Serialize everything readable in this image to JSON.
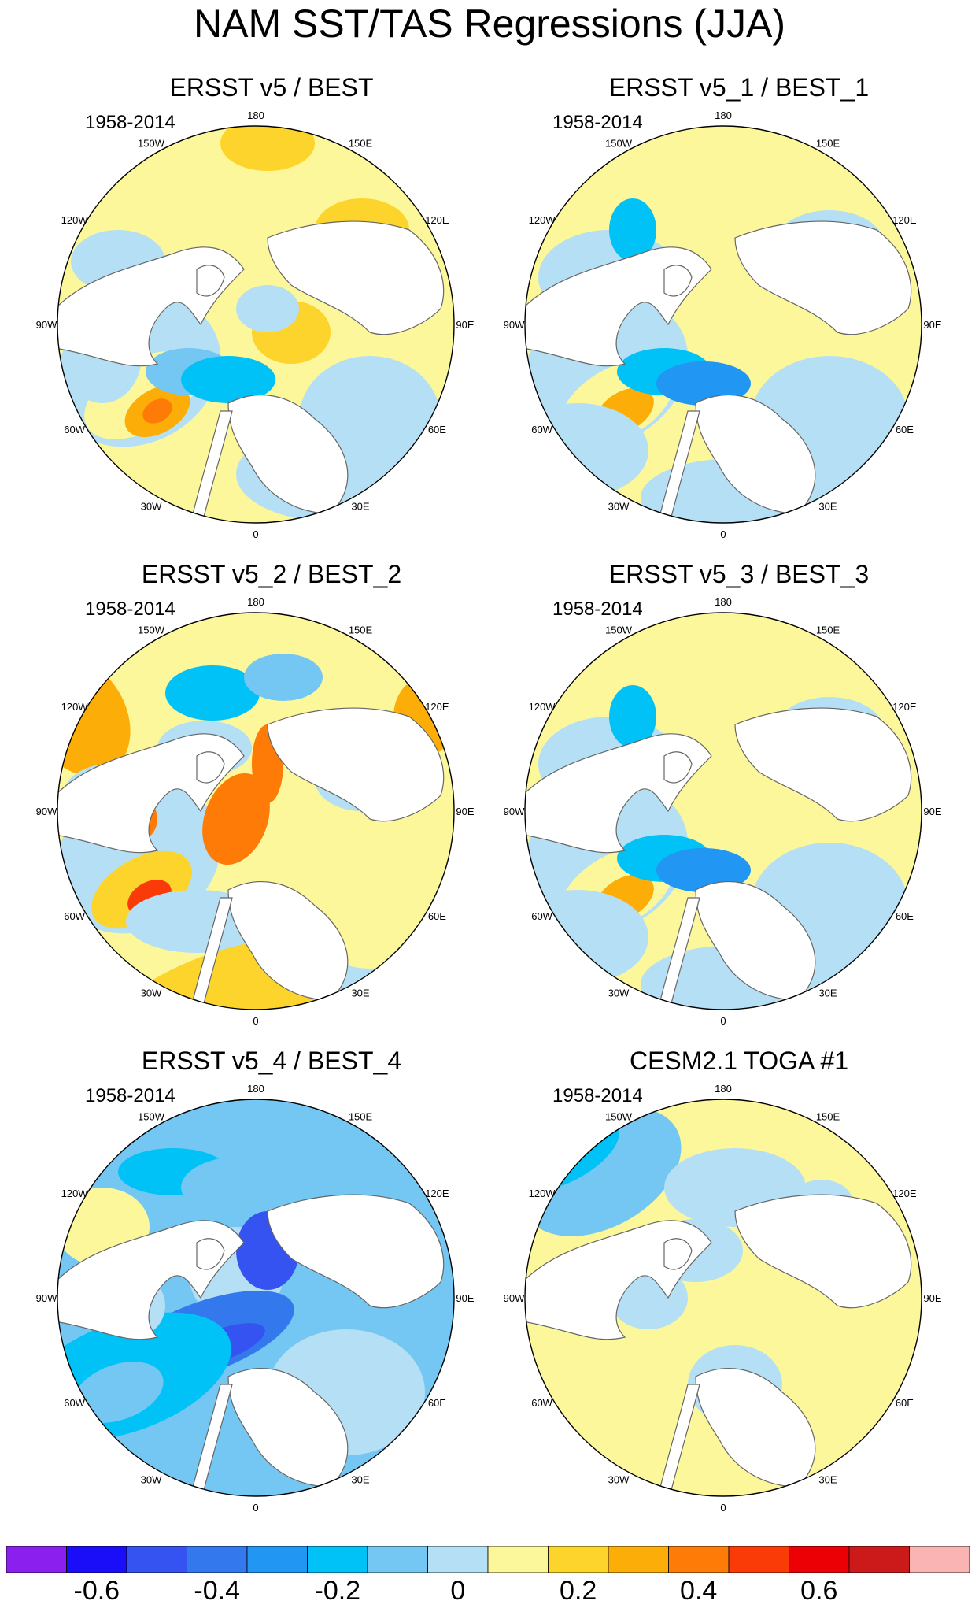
{
  "title": "NAM SST/TAS Regressions (JJA)",
  "panels": [
    {
      "title": "ERSST v5 / BEST",
      "period": "1958-2014",
      "scheme": "a"
    },
    {
      "title": "ERSST v5_1 / BEST_1",
      "period": "1958-2014",
      "scheme": "b"
    },
    {
      "title": "ERSST v5_2 / BEST_2",
      "period": "1958-2014",
      "scheme": "c"
    },
    {
      "title": "ERSST v5_3 / BEST_3",
      "period": "1958-2014",
      "scheme": "b"
    },
    {
      "title": "ERSST v5_4 / BEST_4",
      "period": "1958-2014",
      "scheme": "d"
    },
    {
      "title": "CESM2.1 TOGA #1",
      "period": "1958-2014",
      "scheme": "e"
    }
  ],
  "longitude_labels": [
    "180",
    "150E",
    "120E",
    "90E",
    "60E",
    "30E",
    "0",
    "30W",
    "60W",
    "90W",
    "120W",
    "150W"
  ],
  "colorbar": {
    "colors": [
      "#8a1fee",
      "#1a0df7",
      "#3453f0",
      "#3379ed",
      "#2196f3",
      "#00c2f7",
      "#73c7f2",
      "#b4dff4",
      "#fdf79b",
      "#fdd42c",
      "#fdad08",
      "#fd7b06",
      "#fb3b07",
      "#ed0005",
      "#cc1919",
      "#fbb4b4"
    ],
    "labels": [
      "-0.6",
      "-0.4",
      "-0.2",
      "0",
      "0.2",
      "0.4",
      "0.6"
    ],
    "label_values": [
      -0.6,
      -0.4,
      -0.2,
      0,
      0.2,
      0.4,
      0.6
    ],
    "value_min": -0.75,
    "value_max": 0.85
  },
  "land_color": "#ffffff",
  "coast_color": "#666666"
}
